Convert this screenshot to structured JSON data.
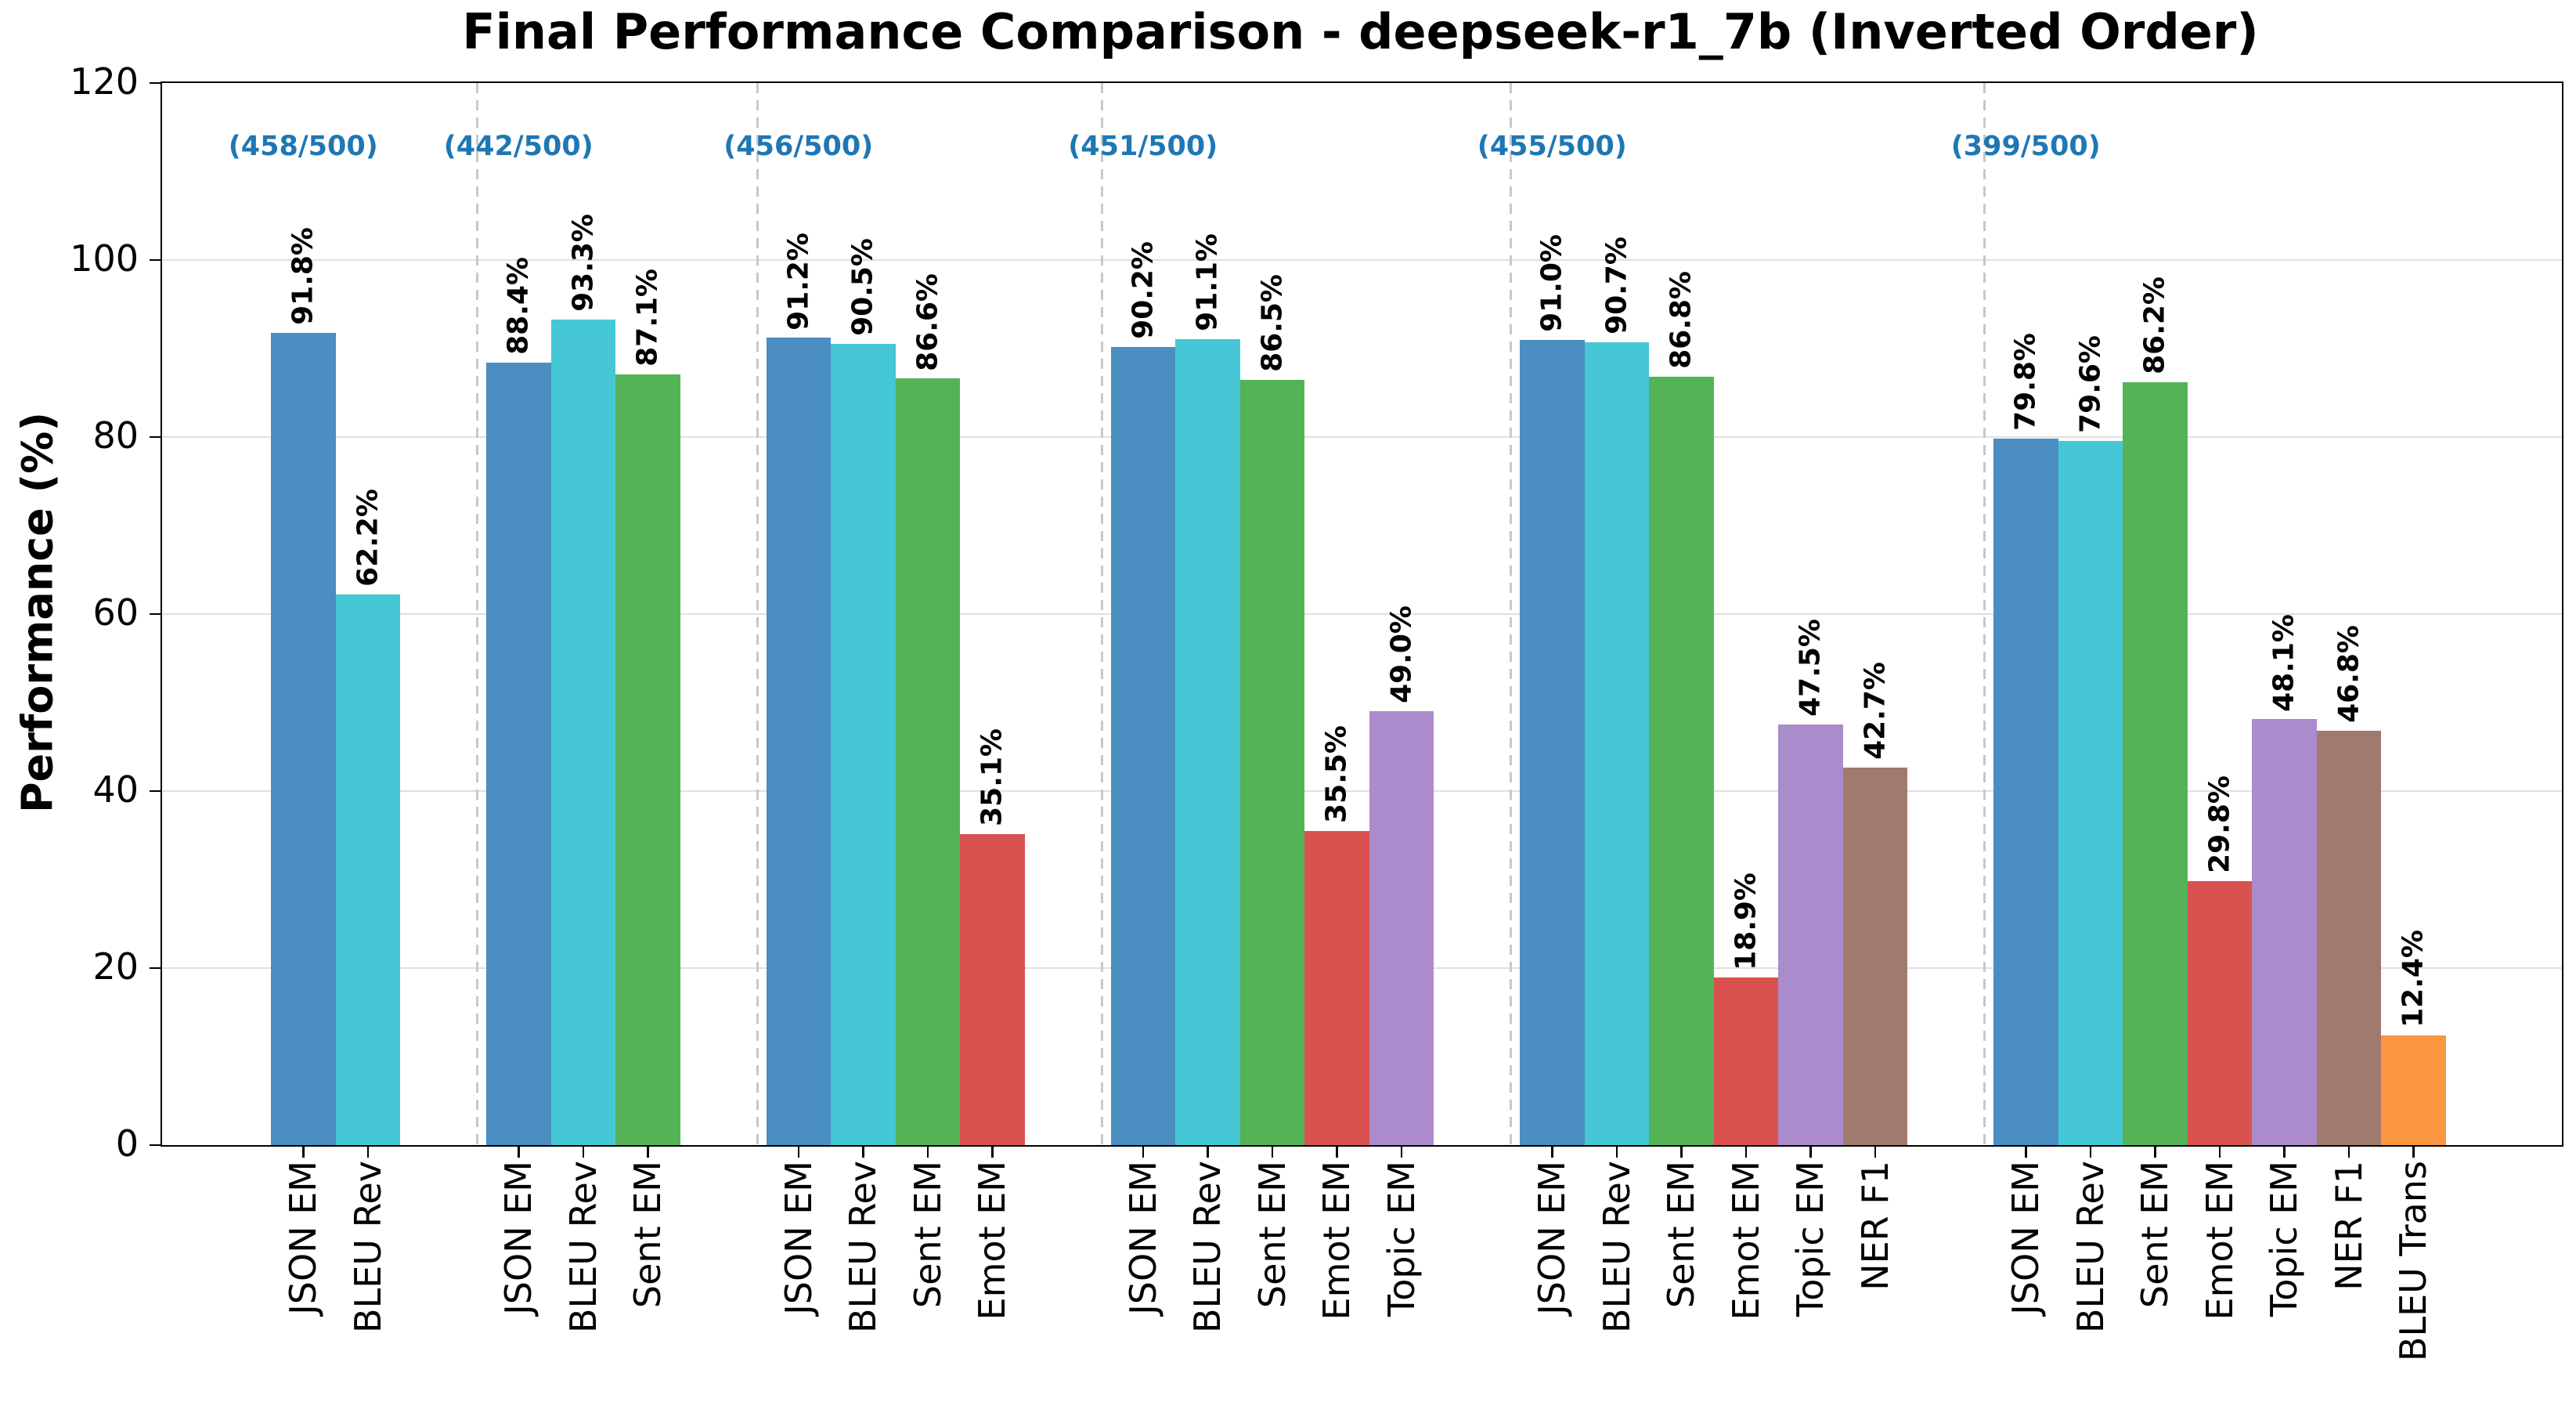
{
  "chart_data": {
    "type": "bar",
    "title": "Final Performance Comparison - deepseek-r1_7b (Inverted Order)",
    "ylabel": "Performance (%)",
    "ylim": [
      0,
      120
    ],
    "yticks": [
      "0",
      "20",
      "40",
      "60",
      "80",
      "100",
      "120"
    ],
    "grid": true,
    "legend": "none",
    "annotation_color": "#1f77b4",
    "grid_color": "#e0e0e0",
    "separator_color": "#c8c8c8",
    "groups": [
      {
        "count_label": "(458/500)",
        "bars": [
          {
            "label": "JSON EM",
            "value": 91.8,
            "value_label": "91.8%",
            "color": "#4b8ec1"
          },
          {
            "label": "BLEU Rev",
            "value": 62.2,
            "value_label": "62.2%",
            "color": "#45c7d6"
          }
        ]
      },
      {
        "count_label": "(442/500)",
        "bars": [
          {
            "label": "JSON EM",
            "value": 88.4,
            "value_label": "88.4%",
            "color": "#4b8ec1"
          },
          {
            "label": "BLEU Rev",
            "value": 93.3,
            "value_label": "93.3%",
            "color": "#45c7d6"
          },
          {
            "label": "Sent EM",
            "value": 87.1,
            "value_label": "87.1%",
            "color": "#55b357"
          }
        ]
      },
      {
        "count_label": "(456/500)",
        "bars": [
          {
            "label": "JSON EM",
            "value": 91.2,
            "value_label": "91.2%",
            "color": "#4b8ec1"
          },
          {
            "label": "BLEU Rev",
            "value": 90.5,
            "value_label": "90.5%",
            "color": "#45c7d6"
          },
          {
            "label": "Sent EM",
            "value": 86.6,
            "value_label": "86.6%",
            "color": "#55b357"
          },
          {
            "label": "Emot EM",
            "value": 35.1,
            "value_label": "35.1%",
            "color": "#d9524f"
          }
        ]
      },
      {
        "count_label": "(451/500)",
        "bars": [
          {
            "label": "JSON EM",
            "value": 90.2,
            "value_label": "90.2%",
            "color": "#4b8ec1"
          },
          {
            "label": "BLEU Rev",
            "value": 91.1,
            "value_label": "91.1%",
            "color": "#45c7d6"
          },
          {
            "label": "Sent EM",
            "value": 86.5,
            "value_label": "86.5%",
            "color": "#55b357"
          },
          {
            "label": "Emot EM",
            "value": 35.5,
            "value_label": "35.5%",
            "color": "#d9524f"
          },
          {
            "label": "Topic EM",
            "value": 49.0,
            "value_label": "49.0%",
            "color": "#aa8bcb"
          }
        ]
      },
      {
        "count_label": "(455/500)",
        "bars": [
          {
            "label": "JSON EM",
            "value": 91.0,
            "value_label": "91.0%",
            "color": "#4b8ec1"
          },
          {
            "label": "BLEU Rev",
            "value": 90.7,
            "value_label": "90.7%",
            "color": "#45c7d6"
          },
          {
            "label": "Sent EM",
            "value": 86.8,
            "value_label": "86.8%",
            "color": "#55b357"
          },
          {
            "label": "Emot EM",
            "value": 18.9,
            "value_label": "18.9%",
            "color": "#d9524f"
          },
          {
            "label": "Topic EM",
            "value": 47.5,
            "value_label": "47.5%",
            "color": "#aa8bcb"
          },
          {
            "label": "NER F1",
            "value": 42.7,
            "value_label": "42.7%",
            "color": "#a07a6e"
          }
        ]
      },
      {
        "count_label": "(399/500)",
        "bars": [
          {
            "label": "JSON EM",
            "value": 79.8,
            "value_label": "79.8%",
            "color": "#4b8ec1"
          },
          {
            "label": "BLEU Rev",
            "value": 79.6,
            "value_label": "79.6%",
            "color": "#45c7d6"
          },
          {
            "label": "Sent EM",
            "value": 86.2,
            "value_label": "86.2%",
            "color": "#55b357"
          },
          {
            "label": "Emot EM",
            "value": 29.8,
            "value_label": "29.8%",
            "color": "#d9524f"
          },
          {
            "label": "Topic EM",
            "value": 48.1,
            "value_label": "48.1%",
            "color": "#aa8bcb"
          },
          {
            "label": "NER F1",
            "value": 46.8,
            "value_label": "46.8%",
            "color": "#a07a6e"
          },
          {
            "label": "BLEU Trans",
            "value": 12.4,
            "value_label": "12.4%",
            "color": "#fb9540"
          }
        ]
      }
    ]
  }
}
